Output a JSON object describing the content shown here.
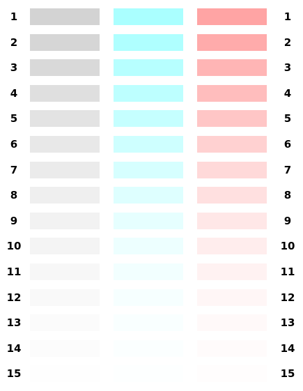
{
  "rows": [
    {
      "label": "1",
      "gray": "#d3d3d3",
      "cyan": "#aaffff",
      "red": "#ffa4a4"
    },
    {
      "label": "2",
      "gray": "#d6d6d6",
      "cyan": "#afffff",
      "red": "#ffabab"
    },
    {
      "label": "3",
      "gray": "#d9d9d9",
      "cyan": "#b7ffff",
      "red": "#ffb5b5"
    },
    {
      "label": "4",
      "gray": "#dfdfdf",
      "cyan": "#bdffff",
      "red": "#ffbdbd"
    },
    {
      "label": "5",
      "gray": "#e3e3e3",
      "cyan": "#c5ffff",
      "red": "#ffc6c6"
    },
    {
      "label": "6",
      "gray": "#e8e8e8",
      "cyan": "#ceffff",
      "red": "#ffd1d1"
    },
    {
      "label": "7",
      "gray": "#ebebeb",
      "cyan": "#d6ffff",
      "red": "#ffd9d9"
    },
    {
      "label": "8",
      "gray": "#efefef",
      "cyan": "#deffff",
      "red": "#ffe0e0"
    },
    {
      "label": "9",
      "gray": "#f2f2f2",
      "cyan": "#e6ffff",
      "red": "#ffe7e7"
    },
    {
      "label": "10",
      "gray": "#f4f4f4",
      "cyan": "#edffff",
      "red": "#ffeded"
    },
    {
      "label": "11",
      "gray": "#f7f7f7",
      "cyan": "#f2ffff",
      "red": "#fff2f2"
    },
    {
      "label": "12",
      "gray": "#f9f9f9",
      "cyan": "#f6ffff",
      "red": "#fff6f6"
    },
    {
      "label": "13",
      "gray": "#fbfbfb",
      "cyan": "#f9ffff",
      "red": "#fff9f9"
    },
    {
      "label": "14",
      "gray": "#fcfcfc",
      "cyan": "#fbffff",
      "red": "#fffbfb"
    },
    {
      "label": "15",
      "gray": "#fefefe",
      "cyan": "#fdffff",
      "red": "#fffdfd"
    }
  ]
}
